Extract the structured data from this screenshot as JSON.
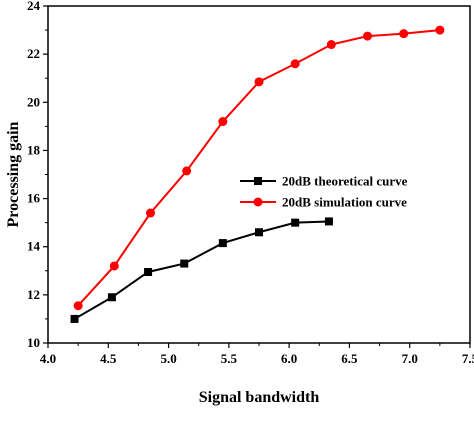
{
  "chart_data": {
    "type": "line",
    "title": "",
    "xlabel": "Signal bandwidth",
    "ylabel": "Processing gain",
    "xlim": [
      4.0,
      7.5
    ],
    "ylim": [
      10,
      24
    ],
    "xticks": [
      "4.0",
      "4.5",
      "5.0",
      "5.5",
      "6.0",
      "6.5",
      "7.0",
      "7.5"
    ],
    "yticks": [
      "10",
      "12",
      "14",
      "16",
      "18",
      "20",
      "22",
      "24"
    ],
    "grid": false,
    "legend_position": "center-right",
    "series": [
      {
        "name": "20dB theoretical curve",
        "color": "#000000",
        "marker": "square",
        "x": [
          4.22,
          4.53,
          4.83,
          5.13,
          5.45,
          5.75,
          6.05,
          6.33
        ],
        "y": [
          11.0,
          11.9,
          12.95,
          13.3,
          14.15,
          14.6,
          15.0,
          15.05
        ]
      },
      {
        "name": "20dB simulation curve",
        "color": "#ff0000",
        "marker": "circle",
        "x": [
          4.25,
          4.55,
          4.85,
          5.15,
          5.45,
          5.75,
          6.05,
          6.35,
          6.65,
          6.95,
          7.25
        ],
        "y": [
          11.55,
          13.2,
          15.4,
          17.15,
          19.2,
          20.85,
          21.6,
          22.4,
          22.75,
          22.85,
          23.0
        ]
      }
    ]
  }
}
